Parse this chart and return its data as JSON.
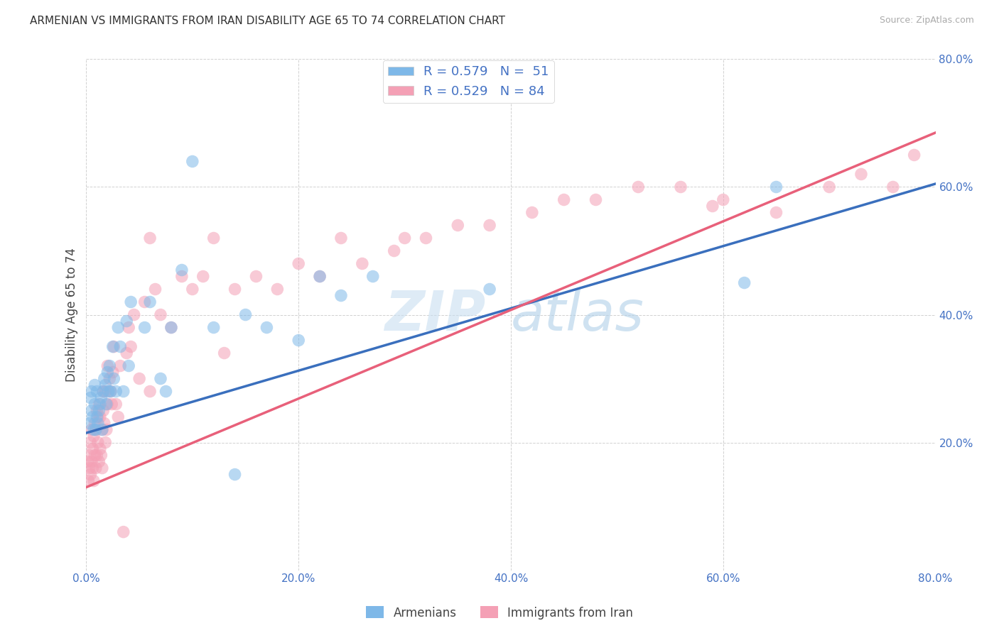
{
  "title": "ARMENIAN VS IMMIGRANTS FROM IRAN DISABILITY AGE 65 TO 74 CORRELATION CHART",
  "source": "Source: ZipAtlas.com",
  "ylabel": "Disability Age 65 to 74",
  "xlim": [
    0.0,
    0.8
  ],
  "ylim": [
    0.0,
    0.8
  ],
  "xticks": [
    0.0,
    0.2,
    0.4,
    0.6,
    0.8
  ],
  "yticks": [
    0.2,
    0.4,
    0.6,
    0.8
  ],
  "xticklabels": [
    "0.0%",
    "20.0%",
    "40.0%",
    "60.0%",
    "80.0%"
  ],
  "yticklabels": [
    "20.0%",
    "40.0%",
    "60.0%",
    "80.0%"
  ],
  "armenian_color": "#7eb8e8",
  "iran_color": "#f4a0b5",
  "line_armenian_color": "#3a6fbd",
  "line_iran_color": "#e8607a",
  "arm_line_x0": 0.0,
  "arm_line_y0": 0.215,
  "arm_line_x1": 0.8,
  "arm_line_y1": 0.605,
  "iran_line_x0": 0.0,
  "iran_line_y0": 0.13,
  "iran_line_x1": 0.8,
  "iran_line_y1": 0.685,
  "armenian_x": [
    0.003,
    0.004,
    0.005,
    0.005,
    0.006,
    0.007,
    0.008,
    0.008,
    0.009,
    0.01,
    0.01,
    0.011,
    0.012,
    0.013,
    0.014,
    0.015,
    0.016,
    0.017,
    0.018,
    0.019,
    0.02,
    0.021,
    0.022,
    0.023,
    0.025,
    0.026,
    0.028,
    0.03,
    0.032,
    0.035,
    0.038,
    0.04,
    0.042,
    0.055,
    0.06,
    0.07,
    0.075,
    0.08,
    0.09,
    0.1,
    0.12,
    0.14,
    0.15,
    0.17,
    0.2,
    0.22,
    0.24,
    0.27,
    0.38,
    0.62,
    0.65
  ],
  "armenian_y": [
    0.23,
    0.27,
    0.25,
    0.28,
    0.24,
    0.22,
    0.26,
    0.29,
    0.22,
    0.28,
    0.24,
    0.23,
    0.25,
    0.26,
    0.27,
    0.22,
    0.28,
    0.3,
    0.29,
    0.26,
    0.31,
    0.28,
    0.32,
    0.28,
    0.35,
    0.3,
    0.28,
    0.38,
    0.35,
    0.28,
    0.39,
    0.32,
    0.42,
    0.38,
    0.42,
    0.3,
    0.28,
    0.38,
    0.47,
    0.64,
    0.38,
    0.15,
    0.4,
    0.38,
    0.36,
    0.46,
    0.43,
    0.46,
    0.44,
    0.45,
    0.6
  ],
  "iran_x": [
    0.001,
    0.002,
    0.003,
    0.003,
    0.004,
    0.004,
    0.005,
    0.005,
    0.006,
    0.006,
    0.007,
    0.007,
    0.008,
    0.008,
    0.009,
    0.009,
    0.01,
    0.01,
    0.011,
    0.011,
    0.012,
    0.012,
    0.013,
    0.013,
    0.014,
    0.015,
    0.015,
    0.016,
    0.016,
    0.017,
    0.018,
    0.018,
    0.019,
    0.02,
    0.02,
    0.022,
    0.023,
    0.024,
    0.025,
    0.026,
    0.028,
    0.03,
    0.032,
    0.035,
    0.038,
    0.04,
    0.042,
    0.045,
    0.05,
    0.055,
    0.06,
    0.065,
    0.07,
    0.08,
    0.09,
    0.1,
    0.11,
    0.12,
    0.14,
    0.16,
    0.18,
    0.2,
    0.22,
    0.24,
    0.26,
    0.29,
    0.32,
    0.35,
    0.38,
    0.42,
    0.45,
    0.48,
    0.52,
    0.56,
    0.6,
    0.65,
    0.7,
    0.73,
    0.76,
    0.78,
    0.06,
    0.13,
    0.3,
    0.59
  ],
  "iran_y": [
    0.17,
    0.14,
    0.16,
    0.18,
    0.15,
    0.2,
    0.17,
    0.22,
    0.19,
    0.16,
    0.14,
    0.21,
    0.18,
    0.23,
    0.16,
    0.22,
    0.18,
    0.25,
    0.2,
    0.24,
    0.17,
    0.26,
    0.19,
    0.24,
    0.18,
    0.16,
    0.22,
    0.28,
    0.25,
    0.23,
    0.2,
    0.28,
    0.22,
    0.26,
    0.32,
    0.3,
    0.28,
    0.26,
    0.31,
    0.35,
    0.26,
    0.24,
    0.32,
    0.06,
    0.34,
    0.38,
    0.35,
    0.4,
    0.3,
    0.42,
    0.28,
    0.44,
    0.4,
    0.38,
    0.46,
    0.44,
    0.46,
    0.52,
    0.44,
    0.46,
    0.44,
    0.48,
    0.46,
    0.52,
    0.48,
    0.5,
    0.52,
    0.54,
    0.54,
    0.56,
    0.58,
    0.58,
    0.6,
    0.6,
    0.58,
    0.56,
    0.6,
    0.62,
    0.6,
    0.65,
    0.52,
    0.34,
    0.52,
    0.57
  ]
}
